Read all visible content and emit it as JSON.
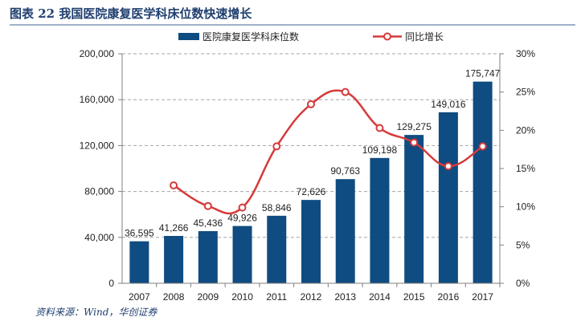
{
  "figure": {
    "title": "图表 22    我国医院康复医学科床位数快速增长",
    "source": "资料来源：Wind，华创证券"
  },
  "colors": {
    "bar": "#0f4c81",
    "line": "#d63a3a",
    "marker_fill": "#ffffff",
    "grid": "#a6a6a6",
    "axis": "#7f7f7f",
    "text": "#222222",
    "title": "#1f3f6f"
  },
  "chart_data": {
    "type": "bar",
    "categories": [
      "2007",
      "2008",
      "2009",
      "2010",
      "2011",
      "2012",
      "2013",
      "2014",
      "2015",
      "2016",
      "2017"
    ],
    "series": [
      {
        "name": "医院康复医学科床位数",
        "type": "bar",
        "axis": "left",
        "values": [
          36595,
          41266,
          45436,
          49926,
          58846,
          72626,
          90763,
          109198,
          129275,
          149016,
          175747
        ],
        "labels": [
          "36,595",
          "41,266",
          "45,436",
          "49,926",
          "58,846",
          "72,626",
          "90,763",
          "109,198",
          "129,275",
          "149,016",
          "175,747"
        ]
      },
      {
        "name": "同比增长",
        "type": "line",
        "axis": "right",
        "smooth": true,
        "values": [
          null,
          12.8,
          10.1,
          9.9,
          17.9,
          23.4,
          25.0,
          20.3,
          18.4,
          15.3,
          17.9
        ]
      }
    ],
    "y_left": {
      "min": 0,
      "max": 200000,
      "ticks": [
        "0",
        "40,000",
        "80,000",
        "120,000",
        "160,000",
        "200,000"
      ]
    },
    "y_right": {
      "min": 0,
      "max": 30,
      "ticks": [
        "0%",
        "5%",
        "10%",
        "15%",
        "20%",
        "25%",
        "30%"
      ]
    },
    "grid": true,
    "legend_position": "top"
  }
}
